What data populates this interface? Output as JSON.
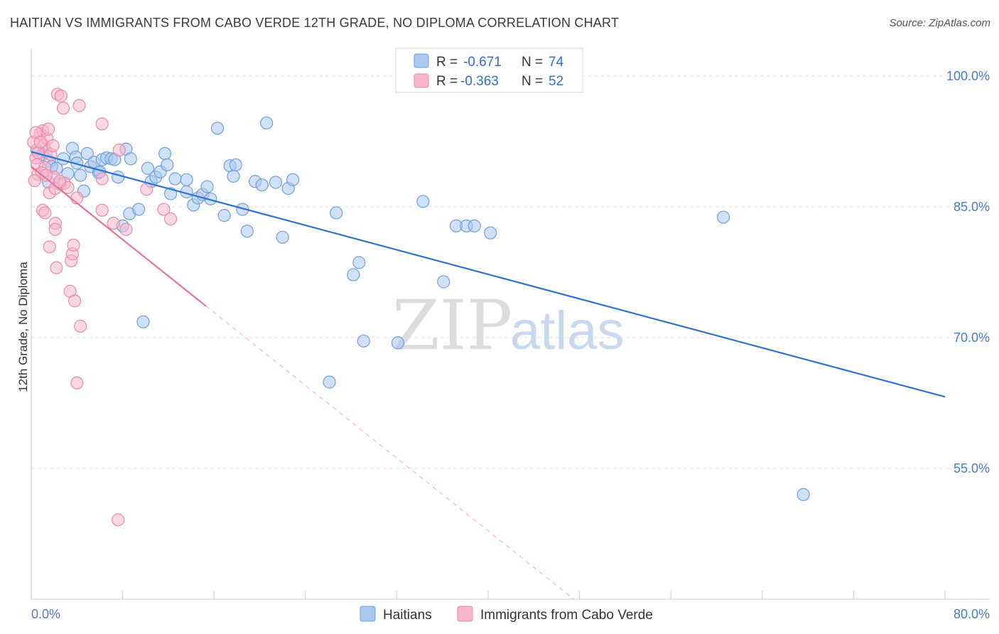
{
  "header": {
    "title": "HAITIAN VS IMMIGRANTS FROM CABO VERDE 12TH GRADE, NO DIPLOMA CORRELATION CHART",
    "source": "Source: ZipAtlas.com"
  },
  "watermark": {
    "zip": "ZIP",
    "atlas": "atlas"
  },
  "chart_data": {
    "type": "scatter",
    "title": "HAITIAN VS IMMIGRANTS FROM CABO VERDE 12TH GRADE, NO DIPLOMA CORRELATION CHART",
    "ylabel": "12th Grade, No Diploma",
    "xlabel": "",
    "xlim": [
      0,
      80
    ],
    "ylim": [
      40,
      103
    ],
    "x_tick_labels": {
      "min": "0.0%",
      "max": "80.0%"
    },
    "y_ticks": [
      {
        "value": 100,
        "label": "100.0%"
      },
      {
        "value": 85,
        "label": "85.0%"
      },
      {
        "value": 70,
        "label": "70.0%"
      },
      {
        "value": 55,
        "label": "55.0%"
      }
    ],
    "grid": "horizontal-dashed",
    "legend_placement": "top-center",
    "legend": [
      {
        "r_label": "R =",
        "r_value": "-0.671",
        "n_label": "N =",
        "n_value": "74",
        "color": "#a9c8f0"
      },
      {
        "r_label": "R =",
        "r_value": "-0.363",
        "n_label": "N =",
        "n_value": "52",
        "color": "#f7b6ca"
      }
    ],
    "series": [
      {
        "name": "Haitians",
        "color": "#a9c8f0",
        "stroke": "#6f9fdc",
        "trend": {
          "x0": 0,
          "y0": 91.3,
          "x1": 80,
          "y1": 63.2,
          "color": "#2f72d2"
        },
        "points": [
          [
            0.5,
            91.5
          ],
          [
            1.0,
            91.0
          ],
          [
            1.3,
            91.3
          ],
          [
            1.6,
            90.2
          ],
          [
            1.5,
            87.8
          ],
          [
            1.8,
            89.6
          ],
          [
            2.2,
            89.4
          ],
          [
            2.5,
            87.6
          ],
          [
            2.8,
            90.5
          ],
          [
            3.2,
            88.8
          ],
          [
            3.6,
            91.7
          ],
          [
            3.9,
            90.7
          ],
          [
            4.3,
            88.6
          ],
          [
            4.6,
            86.8
          ],
          [
            4.9,
            91.1
          ],
          [
            5.2,
            89.6
          ],
          [
            5.5,
            90.1
          ],
          [
            5.9,
            88.9
          ],
          [
            6.2,
            90.4
          ],
          [
            6.6,
            90.6
          ],
          [
            7.0,
            90.5
          ],
          [
            7.3,
            90.4
          ],
          [
            7.6,
            88.4
          ],
          [
            8.0,
            82.8
          ],
          [
            8.3,
            91.6
          ],
          [
            8.7,
            90.5
          ],
          [
            8.6,
            84.2
          ],
          [
            9.4,
            84.7
          ],
          [
            10.2,
            89.4
          ],
          [
            10.5,
            87.9
          ],
          [
            10.9,
            88.4
          ],
          [
            11.3,
            89.0
          ],
          [
            11.7,
            91.1
          ],
          [
            11.9,
            89.8
          ],
          [
            12.2,
            86.5
          ],
          [
            12.6,
            88.2
          ],
          [
            13.6,
            88.1
          ],
          [
            13.6,
            86.7
          ],
          [
            14.2,
            85.2
          ],
          [
            14.6,
            86.0
          ],
          [
            15.0,
            86.4
          ],
          [
            15.4,
            87.3
          ],
          [
            15.7,
            85.9
          ],
          [
            16.3,
            94.0
          ],
          [
            16.9,
            84.0
          ],
          [
            17.4,
            89.7
          ],
          [
            17.7,
            88.5
          ],
          [
            17.9,
            89.8
          ],
          [
            18.5,
            84.7
          ],
          [
            18.9,
            82.2
          ],
          [
            19.6,
            87.9
          ],
          [
            20.2,
            87.5
          ],
          [
            20.6,
            94.6
          ],
          [
            21.4,
            87.8
          ],
          [
            22.0,
            81.5
          ],
          [
            22.5,
            87.1
          ],
          [
            22.9,
            88.1
          ],
          [
            9.8,
            71.8
          ],
          [
            26.7,
            84.3
          ],
          [
            28.2,
            77.2
          ],
          [
            28.7,
            78.6
          ],
          [
            29.1,
            69.6
          ],
          [
            26.1,
            64.9
          ],
          [
            32.1,
            69.4
          ],
          [
            34.3,
            85.6
          ],
          [
            36.1,
            76.4
          ],
          [
            37.2,
            82.8
          ],
          [
            38.1,
            82.8
          ],
          [
            38.8,
            82.8
          ],
          [
            40.2,
            82.0
          ],
          [
            60.6,
            83.8
          ],
          [
            67.6,
            52.0
          ],
          [
            4.0,
            90.0
          ],
          [
            6.0,
            89.0
          ]
        ]
      },
      {
        "name": "Immigrants from Cabo Verde",
        "color": "#f7b6ca",
        "stroke": "#e98aa8",
        "trend": {
          "x0": 0,
          "y0": 89.6,
          "x1": 15.3,
          "y1": 73.6,
          "color": "#e8739b",
          "dash_x1": 47.5,
          "dash_y1": 40
        },
        "points": [
          [
            0.2,
            92.4
          ],
          [
            0.4,
            90.6
          ],
          [
            0.5,
            89.8
          ],
          [
            0.6,
            88.7
          ],
          [
            0.8,
            93.4
          ],
          [
            1.0,
            93.7
          ],
          [
            1.1,
            92.0
          ],
          [
            1.2,
            89.5
          ],
          [
            1.4,
            92.8
          ],
          [
            1.5,
            93.9
          ],
          [
            1.7,
            91.0
          ],
          [
            1.6,
            86.6
          ],
          [
            1.0,
            84.6
          ],
          [
            1.2,
            84.3
          ],
          [
            0.9,
            88.9
          ],
          [
            2.0,
            88.4
          ],
          [
            2.1,
            87.1
          ],
          [
            1.6,
            80.4
          ],
          [
            2.1,
            83.1
          ],
          [
            2.1,
            82.4
          ],
          [
            2.2,
            78.0
          ],
          [
            2.3,
            97.9
          ],
          [
            2.6,
            97.7
          ],
          [
            2.8,
            96.3
          ],
          [
            2.9,
            87.7
          ],
          [
            3.2,
            87.2
          ],
          [
            3.4,
            75.3
          ],
          [
            3.5,
            78.8
          ],
          [
            3.6,
            79.6
          ],
          [
            3.7,
            80.6
          ],
          [
            3.8,
            74.2
          ],
          [
            4.0,
            86.0
          ],
          [
            4.2,
            96.6
          ],
          [
            4.3,
            71.3
          ],
          [
            4.0,
            64.8
          ],
          [
            6.2,
            94.5
          ],
          [
            6.2,
            88.2
          ],
          [
            6.2,
            84.6
          ],
          [
            7.2,
            83.1
          ],
          [
            7.7,
            91.5
          ],
          [
            8.3,
            82.4
          ],
          [
            10.1,
            87.0
          ],
          [
            11.6,
            84.7
          ],
          [
            12.2,
            83.6
          ],
          [
            7.6,
            49.1
          ],
          [
            0.3,
            88.0
          ],
          [
            0.6,
            91.2
          ],
          [
            0.4,
            93.5
          ],
          [
            1.3,
            88.6
          ],
          [
            2.5,
            87.9
          ],
          [
            0.8,
            92.4
          ],
          [
            1.9,
            92.0
          ]
        ]
      }
    ]
  }
}
